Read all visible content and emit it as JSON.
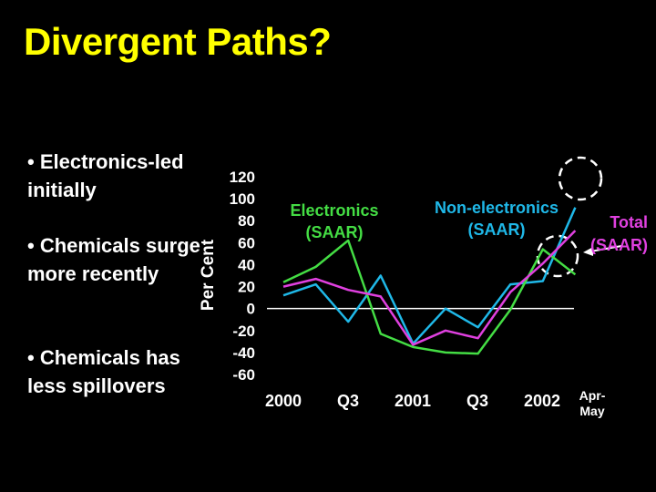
{
  "slide": {
    "title": "Divergent Paths?",
    "bullets": [
      "• Electronics-led initially",
      "• Chemicals surge more recently",
      "• Chemicals has less spillovers"
    ]
  },
  "colors": {
    "title": "#ffff00",
    "background": "#000000",
    "electronics": "#1fb8e8",
    "non_electronics": "#44dd44",
    "total": "#e040e0",
    "zero_line": "#ffffff",
    "annotation_circle": "#ffffff"
  },
  "chart_data": {
    "type": "line",
    "ylabel": "Per Cent",
    "ylim": [
      -60,
      120
    ],
    "yticks": [
      120,
      100,
      80,
      60,
      40,
      20,
      0,
      -20,
      -40,
      -60
    ],
    "x_tick_labels": [
      "2000",
      "Q3",
      "2001",
      "Q3",
      "2002",
      "Apr-May"
    ],
    "series": [
      {
        "name": "Electronics (SAAR)",
        "color_key": "electronics",
        "values": [
          12,
          22,
          -12,
          30,
          -32,
          0,
          -17,
          22,
          25,
          92
        ]
      },
      {
        "name": "Non-electronics (SAAR)",
        "color_key": "non_electronics",
        "values": [
          24,
          38,
          62,
          -23,
          -35,
          -40,
          -41,
          -1,
          54,
          31
        ]
      },
      {
        "name": "Total (SAAR)",
        "color_key": "total",
        "values": [
          20,
          27,
          17,
          11,
          -33,
          -20,
          -27,
          15,
          41,
          71
        ]
      }
    ],
    "labels": {
      "electronics": [
        "Electronics",
        "(SAAR)"
      ],
      "non_electronics": [
        "Non-electronics",
        "(SAAR)"
      ],
      "total": [
        "Total",
        "(SAAR)"
      ]
    }
  }
}
